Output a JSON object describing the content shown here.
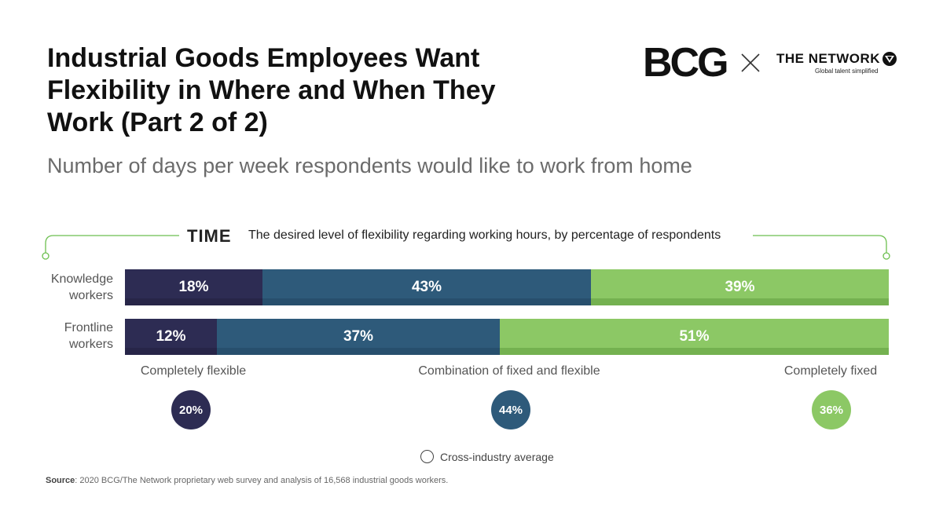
{
  "header": {
    "title": "Industrial Goods Employees Want Flexibility in Where and When They Work (Part 2 of 2)",
    "subtitle": "Number of days per week respondents would like to work from home"
  },
  "logos": {
    "bcg": "BCG",
    "network_name": "THE NETWORK",
    "network_tagline": "Global talent simplified",
    "separator_icon": "x-icon",
    "globe_icon": "globe-icon"
  },
  "section": {
    "label": "TIME",
    "description": "The desired level of flexibility regarding working hours, by percentage of respondents"
  },
  "chart_data": {
    "type": "bar",
    "orientation": "horizontal-stacked-100",
    "categories": [
      "Knowledge workers",
      "Frontline workers"
    ],
    "series": [
      {
        "name": "Completely flexible",
        "values": [
          18,
          12
        ],
        "labels": [
          "18%",
          "12%"
        ],
        "color": "#2d2c53"
      },
      {
        "name": "Combination of fixed and flexible",
        "values": [
          43,
          37
        ],
        "labels": [
          "43%",
          "37%"
        ],
        "color": "#2e5a7a"
      },
      {
        "name": "Completely fixed",
        "values": [
          39,
          51
        ],
        "labels": [
          "39%",
          "51%"
        ],
        "color": "#8cc865"
      }
    ],
    "averages": [
      {
        "category": "Completely flexible",
        "value": 20,
        "label": "20%",
        "color": "#2d2c53"
      },
      {
        "category": "Combination of fixed and flexible",
        "value": 44,
        "label": "44%",
        "color": "#2e5a7a"
      },
      {
        "category": "Completely fixed",
        "value": 36,
        "label": "36%",
        "color": "#8cc865"
      }
    ],
    "legend": "Cross-industry average",
    "xlim": [
      0,
      100
    ]
  },
  "footer": {
    "source_label": "Source",
    "source_text": ": 2020 BCG/The Network proprietary web survey and analysis of 16,568 industrial goods workers."
  }
}
